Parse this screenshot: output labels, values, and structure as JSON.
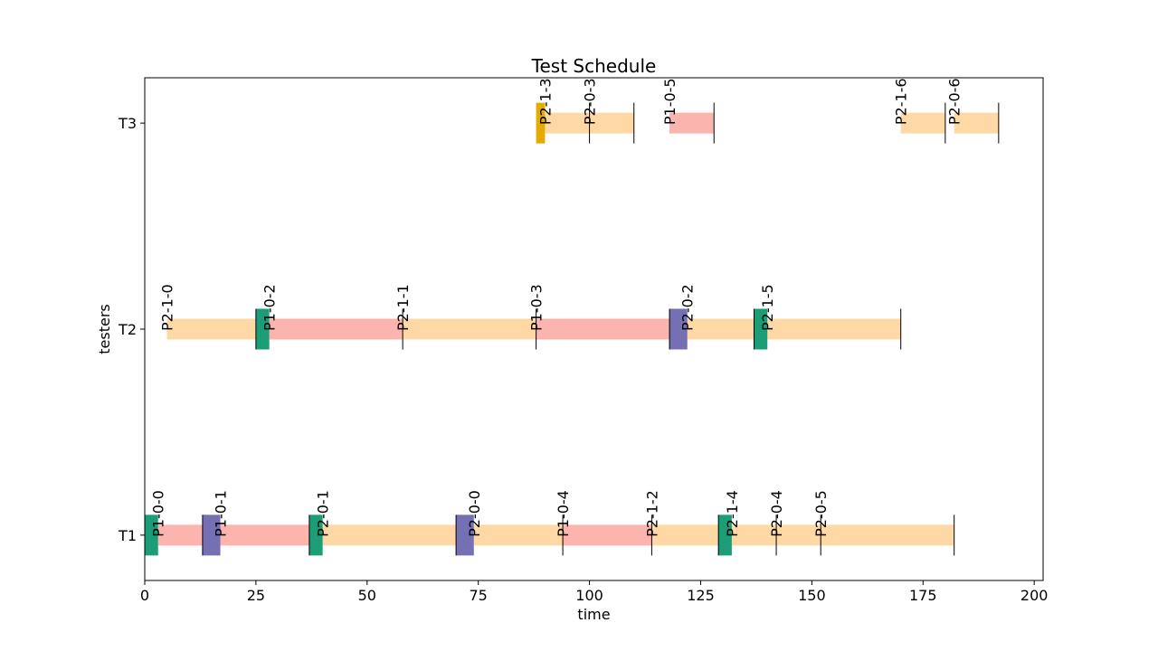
{
  "chart_data": {
    "type": "gantt",
    "title": "Test Schedule",
    "xlabel": "time",
    "ylabel": "testers",
    "xlim": [
      0,
      202
    ],
    "xticks": [
      0,
      25,
      50,
      75,
      100,
      125,
      150,
      175,
      200
    ],
    "ylim": [
      0.78,
      3.22
    ],
    "grid": false,
    "legend": "none",
    "colors": {
      "P1": "#fbb4ae",
      "P2": "#fed9a6",
      "setup_green": "#1b9e77",
      "setup_purple": "#7570b3",
      "setup_gold": "#e6ab02"
    },
    "testers": [
      {
        "name": "T1",
        "y": 1,
        "tasks": [
          {
            "label": "P1-0-0",
            "program": "P1",
            "start": 3,
            "end": 13
          },
          {
            "label": "P1-0-1",
            "program": "P1",
            "start": 17,
            "end": 37
          },
          {
            "label": "P2-0-1",
            "program": "P2",
            "start": 40,
            "end": 70
          },
          {
            "label": "P2-0-0",
            "program": "P2",
            "start": 74,
            "end": 94
          },
          {
            "label": "P1-0-4",
            "program": "P1",
            "start": 94,
            "end": 114
          },
          {
            "label": "P2-1-2",
            "program": "P2",
            "start": 114,
            "end": 129
          },
          {
            "label": "P2-1-4",
            "program": "P2",
            "start": 132,
            "end": 142
          },
          {
            "label": "P2-0-4",
            "program": "P2",
            "start": 142,
            "end": 152
          },
          {
            "label": "P2-0-5",
            "program": "P2",
            "start": 152,
            "end": 182
          }
        ],
        "setups": [
          {
            "start": 0,
            "end": 3,
            "color": "setup_green"
          },
          {
            "start": 13,
            "end": 17,
            "color": "setup_purple"
          },
          {
            "start": 37,
            "end": 40,
            "color": "setup_green"
          },
          {
            "start": 70,
            "end": 74,
            "color": "setup_purple"
          },
          {
            "start": 129,
            "end": 132,
            "color": "setup_green"
          }
        ]
      },
      {
        "name": "T2",
        "y": 2,
        "tasks": [
          {
            "label": "P2-1-0",
            "program": "P2",
            "start": 5,
            "end": 25
          },
          {
            "label": "P1-0-2",
            "program": "P1",
            "start": 28,
            "end": 58
          },
          {
            "label": "P2-1-1",
            "program": "P2",
            "start": 58,
            "end": 88
          },
          {
            "label": "P1-0-3",
            "program": "P1",
            "start": 88,
            "end": 118
          },
          {
            "label": "P2-0-2",
            "program": "P2",
            "start": 122,
            "end": 137
          },
          {
            "label": "P2-1-5",
            "program": "P2",
            "start": 140,
            "end": 170
          }
        ],
        "setups": [
          {
            "start": 25,
            "end": 28,
            "color": "setup_green"
          },
          {
            "start": 118,
            "end": 122,
            "color": "setup_purple"
          },
          {
            "start": 137,
            "end": 140,
            "color": "setup_green"
          }
        ]
      },
      {
        "name": "T3",
        "y": 3,
        "tasks": [
          {
            "label": "P2-1-3",
            "program": "P2",
            "start": 90,
            "end": 100
          },
          {
            "label": "P2-0-3",
            "program": "P2",
            "start": 100,
            "end": 110
          },
          {
            "label": "P1-0-5",
            "program": "P1",
            "start": 118,
            "end": 128
          },
          {
            "label": "P2-1-6",
            "program": "P2",
            "start": 170,
            "end": 180
          },
          {
            "label": "P2-0-6",
            "program": "P2",
            "start": 182,
            "end": 192
          }
        ],
        "setups": [
          {
            "start": 88,
            "end": 90,
            "color": "setup_gold"
          }
        ]
      }
    ]
  }
}
